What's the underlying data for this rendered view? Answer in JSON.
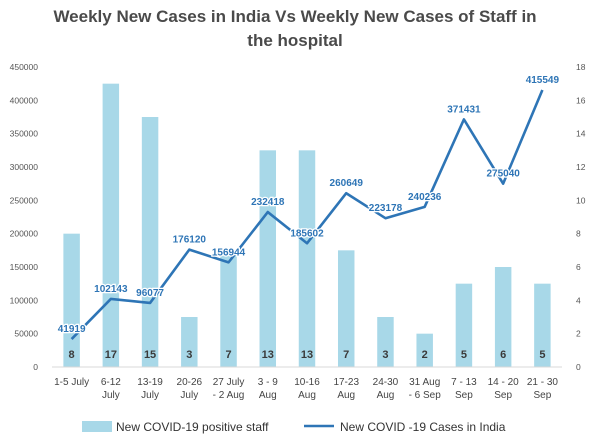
{
  "chart_data": {
    "type": "bar",
    "title_lines": [
      "Weekly New Cases in India Vs Weekly New Cases of Staff in",
      "the hospital"
    ],
    "categories": [
      [
        "1-5 July"
      ],
      [
        "6-12",
        "July"
      ],
      [
        "13-19",
        "July"
      ],
      [
        "20-26",
        "July"
      ],
      [
        "27 July",
        "- 2 Aug"
      ],
      [
        "3 - 9",
        "Aug"
      ],
      [
        "10-16",
        "Aug"
      ],
      [
        "17-23",
        "Aug"
      ],
      [
        "24-30",
        "Aug"
      ],
      [
        "31 Aug",
        "- 6 Sep"
      ],
      [
        "7 - 13",
        "Sep"
      ],
      [
        "14 - 20",
        "Sep"
      ],
      [
        "21 - 30",
        "Sep"
      ]
    ],
    "left_axis": {
      "ylim": [
        0,
        450000
      ],
      "ticks": [
        0,
        50000,
        100000,
        150000,
        200000,
        250000,
        300000,
        350000,
        400000,
        450000
      ]
    },
    "right_axis": {
      "ylim": [
        0,
        18
      ],
      "ticks": [
        0,
        2,
        4,
        6,
        8,
        10,
        12,
        14,
        16,
        18
      ]
    },
    "series": [
      {
        "name": "New COVID-19 positive staff",
        "kind": "bar",
        "axis": "right",
        "color": "#a8d8e8",
        "values": [
          8,
          17,
          15,
          3,
          7,
          13,
          13,
          7,
          3,
          2,
          5,
          6,
          5
        ]
      },
      {
        "name": "New COVID -19 Cases in India",
        "kind": "line",
        "axis": "left",
        "color": "#2e75b6",
        "values": [
          41919,
          102143,
          96077,
          176120,
          156944,
          232418,
          185602,
          260649,
          223178,
          240236,
          371431,
          275040,
          415549
        ]
      }
    ],
    "grid": false,
    "legend_position": "bottom"
  }
}
